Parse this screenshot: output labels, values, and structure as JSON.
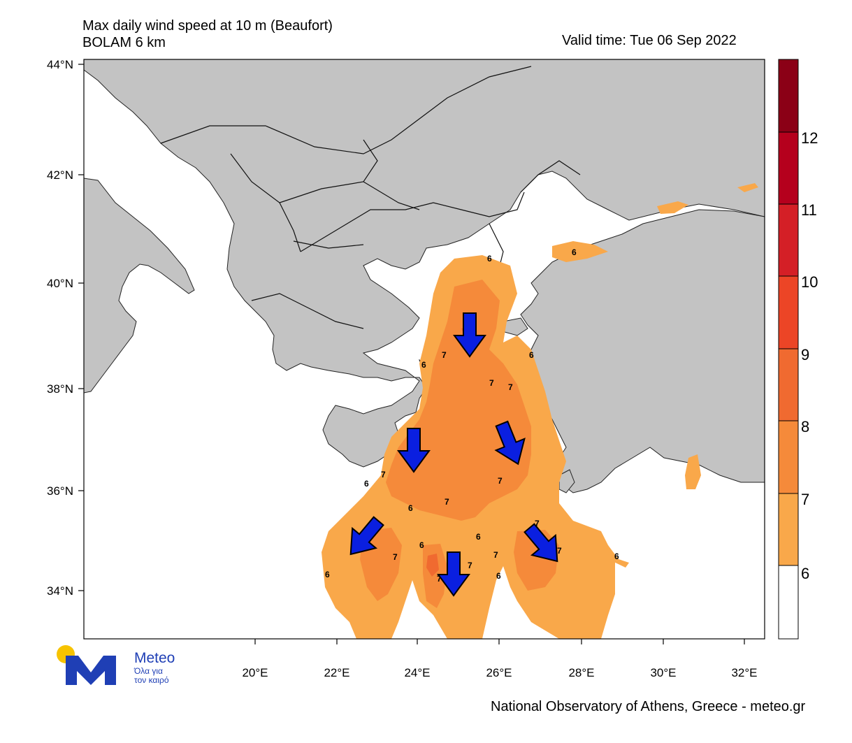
{
  "header": {
    "title_line1": "Max daily wind speed at 10 m (Beaufort)",
    "title_line2": "BOLAM 6 km",
    "valid_time": "Valid time: Tue 06 Sep 2022"
  },
  "map": {
    "lat_labels": [
      "44°N",
      "42°N",
      "40°N",
      "38°N",
      "36°N",
      "34°N"
    ],
    "lon_labels": [
      "20°E",
      "22°E",
      "24°E",
      "26°E",
      "28°E",
      "30°E",
      "32°E"
    ],
    "contour_labels": [
      "6",
      "6",
      "6",
      "7",
      "7",
      "7",
      "6",
      "7",
      "7",
      "7",
      "6",
      "6",
      "7",
      "7",
      "7",
      "6",
      "7",
      "6",
      "6",
      "7",
      "6",
      "7",
      "6"
    ],
    "wind_arrows": [
      "arrow-south",
      "arrow-south",
      "arrow-southeast",
      "arrow-southwest",
      "arrow-south",
      "arrow-southeast"
    ]
  },
  "colorbar": {
    "labels": [
      "12",
      "11",
      "10",
      "9",
      "8",
      "7",
      "6"
    ],
    "colors": [
      "#8b0016",
      "#b5001d",
      "#d41f26",
      "#ec4526",
      "#f06a30",
      "#f58a3a",
      "#f9a84a",
      "#ffffff"
    ]
  },
  "logo": {
    "brand": "Meteo",
    "tagline_line1": "Όλα για",
    "tagline_line2": "τον καιρό"
  },
  "footer": {
    "credit": "National Observatory of Athens, Greece - meteo.gr"
  }
}
